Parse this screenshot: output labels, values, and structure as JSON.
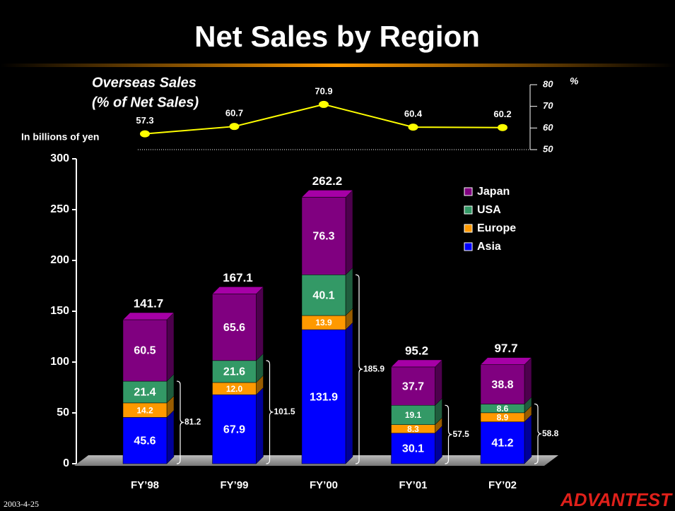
{
  "title": "Net Sales by Region",
  "footer": {
    "date": "2003-4-25",
    "logo": "ADVANTEST"
  },
  "chart_data": [
    {
      "type": "bar",
      "stacked": true,
      "y_label": "In billions of yen",
      "categories": [
        "FY’98",
        "FY’99",
        "FY’00",
        "FY’01",
        "FY’02"
      ],
      "series": [
        {
          "name": "Asia",
          "color": "#0000ff",
          "values": [
            45.6,
            67.9,
            131.9,
            30.1,
            41.2
          ]
        },
        {
          "name": "Europe",
          "color": "#ff9900",
          "values": [
            14.2,
            12.0,
            13.9,
            8.3,
            8.9
          ],
          "value_labels": [
            "14.2",
            "12.0",
            "13.9",
            "8.3",
            "8.9"
          ]
        },
        {
          "name": "USA",
          "color": "#339966",
          "values": [
            21.4,
            21.6,
            40.1,
            19.1,
            8.6
          ]
        },
        {
          "name": "Japan",
          "color": "#800080",
          "values": [
            60.5,
            65.6,
            76.3,
            37.7,
            38.8
          ]
        }
      ],
      "totals": [
        141.7,
        167.1,
        262.2,
        95.2,
        97.7
      ],
      "overseas_totals": [
        81.2,
        101.5,
        185.9,
        57.5,
        58.8
      ],
      "ylim": [
        0,
        300
      ],
      "yticks": [
        0,
        50,
        100,
        150,
        200,
        250,
        300
      ],
      "legend": "upper right"
    },
    {
      "type": "line",
      "title": "Overseas Sales",
      "subtitle": "(% of Net Sales)",
      "y_label": "%",
      "values": [
        57.3,
        60.7,
        70.9,
        60.4,
        60.2
      ],
      "color": "#ffff00",
      "ylim": [
        50,
        80
      ],
      "yticks": [
        50,
        60,
        70,
        80
      ]
    }
  ]
}
